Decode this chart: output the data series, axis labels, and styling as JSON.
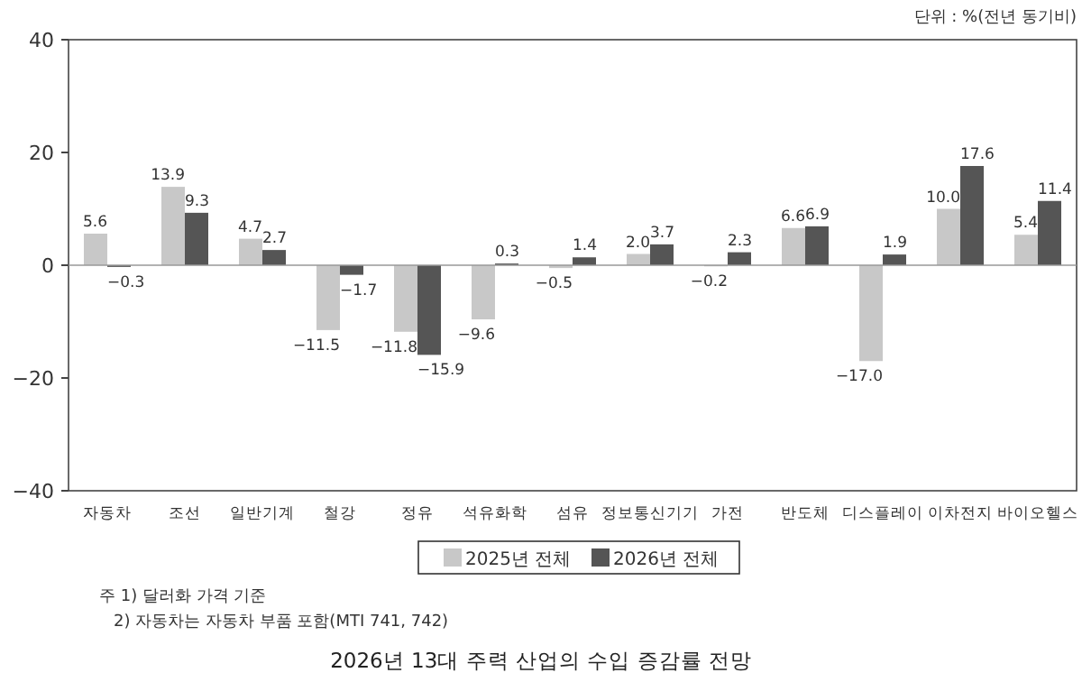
{
  "chart_data": {
    "type": "bar",
    "title": "2026년 13대 주력 산업의 수입 증감률 전망",
    "annotations": [
      "단위 : %(전년 동기비)",
      "주 1) 달러화 가격 기준",
      "2) 자동차는 자동차 부품 포함(MTI 741, 742)"
    ],
    "categories": [
      "자동차",
      "조선",
      "일반기계",
      "철강",
      "정유",
      "석유화학",
      "섬유",
      "정보통신기기",
      "가전",
      "반도체",
      "디스플레이",
      "이차전지",
      "바이오헬스"
    ],
    "series": [
      {
        "name": "2025년 전체",
        "color": "#c8c8c8",
        "values": [
          5.6,
          13.9,
          4.7,
          -11.5,
          -11.8,
          -9.6,
          -0.5,
          2.0,
          -0.2,
          6.6,
          -17.0,
          10.0,
          5.4
        ],
        "value_labels": [
          "5.6",
          "13.9",
          "4.7",
          "−11.5",
          "−11.8",
          "−9.6",
          "−0.5",
          "2.0",
          "−0.2",
          "6.6",
          "−17.0",
          "10.0",
          "5.4"
        ]
      },
      {
        "name": "2026년 전체",
        "color": "#555555",
        "values": [
          -0.3,
          9.3,
          2.7,
          -1.7,
          -15.9,
          0.3,
          1.4,
          3.7,
          2.3,
          6.9,
          1.9,
          17.6,
          11.4
        ],
        "value_labels": [
          "−0.3",
          "9.3",
          "2.7",
          "−1.7",
          "−15.9",
          "0.3",
          "1.4",
          "3.7",
          "2.3",
          "6.9",
          "1.9",
          "17.6",
          "11.4"
        ]
      }
    ],
    "ref_lines": [
      {
        "axis": "y",
        "value": 0,
        "color": "#999999"
      }
    ],
    "ylim": [
      -40,
      40
    ],
    "yticks": [
      -40,
      -20,
      0,
      20,
      40
    ],
    "legend": "bottom"
  }
}
